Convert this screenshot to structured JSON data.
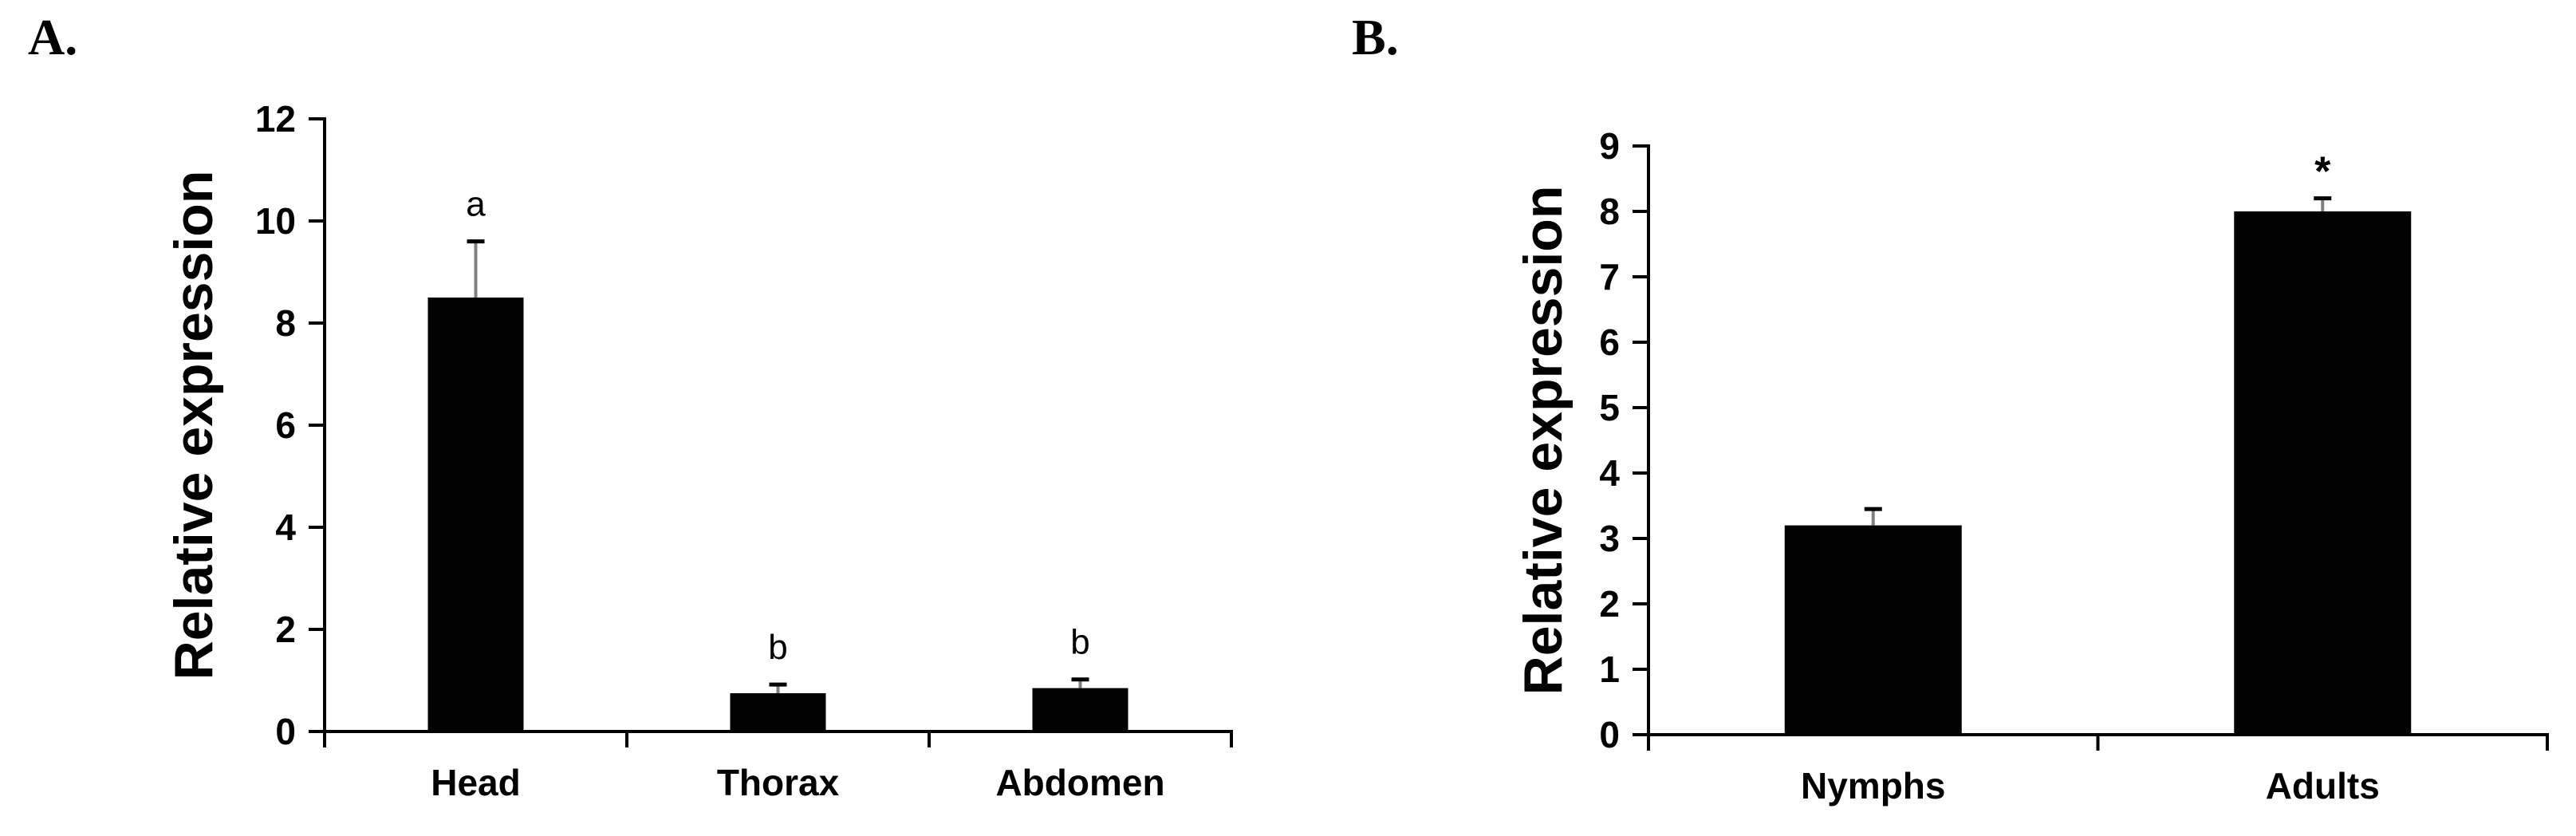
{
  "figure": {
    "background": "#ffffff",
    "bar_color": "#000000",
    "axis_color": "#000000",
    "error_stem_color": "#7f7f7f",
    "error_cap_color": "#000000"
  },
  "chart_data": [
    {
      "type": "bar",
      "panel_label": "A.",
      "title": "",
      "xlabel": "",
      "ylabel": "Relative expression",
      "categories": [
        "Head",
        "Thorax",
        "Abdomen"
      ],
      "values": [
        8.5,
        0.75,
        0.85
      ],
      "errors_upper": [
        1.1,
        0.17,
        0.17
      ],
      "significance_labels": [
        "a",
        "b",
        "b"
      ],
      "ylim": [
        0,
        12
      ],
      "ytick_step": 2,
      "ytick_labels": [
        "0",
        "2",
        "4",
        "6",
        "8",
        "10",
        "12"
      ],
      "grid": false,
      "legend": false
    },
    {
      "type": "bar",
      "panel_label": "B.",
      "title": "",
      "xlabel": "",
      "ylabel": "Relative expression",
      "categories": [
        "Nymphs",
        "Adults"
      ],
      "values": [
        3.2,
        8.0
      ],
      "errors_upper": [
        0.25,
        0.2
      ],
      "significance_labels": [
        "",
        "*"
      ],
      "ylim": [
        0,
        9
      ],
      "ytick_step": 1,
      "ytick_labels": [
        "0",
        "1",
        "2",
        "3",
        "4",
        "5",
        "6",
        "7",
        "8",
        "9"
      ],
      "grid": false,
      "legend": false
    }
  ]
}
